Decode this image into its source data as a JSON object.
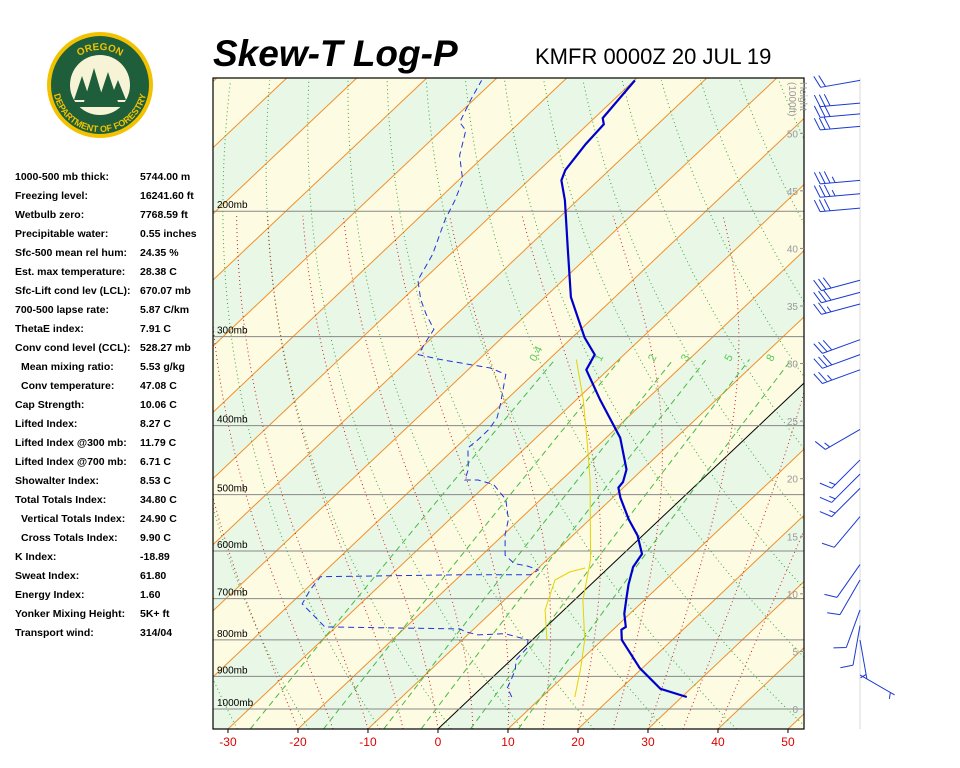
{
  "logo": {
    "top": "OREGON",
    "bottom": "DEPARTMENT OF FORESTRY"
  },
  "stats": [
    [
      "1000-500 mb thick:",
      "5744.00 m"
    ],
    [
      "Freezing level:",
      "16241.60 ft"
    ],
    [
      "Wetbulb zero:",
      "7768.59 ft"
    ],
    [
      "Precipitable water:",
      "0.55 inches"
    ],
    [
      "Sfc-500 mean rel hum:",
      "24.35 %"
    ],
    [
      "Est. max temperature:",
      "28.38 C"
    ],
    [
      "Sfc-Lift cond lev (LCL):",
      "670.07 mb"
    ],
    [
      "700-500 lapse rate:",
      "5.87 C/km"
    ],
    [
      "ThetaE index:",
      "7.91 C"
    ],
    [
      "Conv cond level (CCL):",
      "528.27 mb"
    ],
    [
      "Mean mixing ratio:",
      "5.53 g/kg"
    ],
    [
      "Conv temperature:",
      "47.08 C"
    ],
    [
      "Cap Strength:",
      "10.06 C"
    ],
    [
      "Lifted Index:",
      "8.27 C"
    ],
    [
      "Lifted Index @300 mb:",
      "11.79 C"
    ],
    [
      "Lifted Index @700 mb:",
      "6.71 C"
    ],
    [
      "Showalter Index:",
      "8.53 C"
    ],
    [
      "Total Totals Index:",
      "34.80 C"
    ],
    [
      "Vertical Totals Index:",
      "24.90 C"
    ],
    [
      "Cross Totals Index:",
      "9.90 C"
    ],
    [
      "K Index:",
      "-18.89"
    ],
    [
      "Sweat Index:",
      "61.80"
    ],
    [
      "Energy Index:",
      "1.60"
    ],
    [
      "Yonker Mixing Height:",
      "5K+ ft"
    ],
    [
      "Transport wind:",
      "314/04"
    ]
  ],
  "chart_data": {
    "type": "skewt",
    "title": "Skew-T Log-P",
    "subtitle": "KMFR 0000Z 20 JUL 19",
    "xlim": [
      -32.14,
      52.29
    ],
    "xticks": [
      -30,
      -20,
      -10,
      0,
      10,
      20,
      30,
      40,
      50
    ],
    "ylim": [
      1067,
      130
    ],
    "log_y": true,
    "yticks": [
      {
        "value": 1000,
        "label": "1000mb"
      },
      {
        "value": 900,
        "label": "900mb"
      },
      {
        "value": 800,
        "label": "800mb"
      },
      {
        "value": 700,
        "label": "700mb"
      },
      {
        "value": 600,
        "label": "600mb"
      },
      {
        "value": 500,
        "label": "500mb"
      },
      {
        "value": 400,
        "label": "400mb"
      },
      {
        "value": 300,
        "label": "300mb"
      },
      {
        "value": 200,
        "label": "200mb"
      }
    ],
    "y2label": [
      "Height",
      "(1000ft)"
    ],
    "y2lim": [
      -1.74,
      54.8
    ],
    "y2ticks": [
      0,
      5,
      10,
      15,
      20,
      25,
      30,
      35,
      40,
      45,
      50
    ],
    "mixing_ratio_labels": [
      0.4,
      1,
      2,
      3,
      5,
      8
    ],
    "series": [
      {
        "color": "#0000cc",
        "dashed": false,
        "pressure": [
          962,
          937,
          876,
          826,
          800,
          774,
          767,
          735,
          698,
          669,
          632,
          606,
          571,
          542,
          505,
          489,
          480,
          461,
          416,
          368,
          334,
          318,
          301,
          264,
          226,
          193,
          181,
          175,
          161,
          151,
          148,
          131
        ],
        "temperature": [
          30.7,
          25.7,
          19.6,
          15.2,
          12.8,
          11.2,
          11.4,
          9.2,
          7.1,
          5.4,
          3.4,
          2.7,
          -0.7,
          -4.4,
          -8.9,
          -10.7,
          -10.9,
          -12.3,
          -18.0,
          -26.6,
          -33.1,
          -34.2,
          -38.2,
          -46.3,
          -54.0,
          -61.8,
          -65.3,
          -66.3,
          -67.3,
          -67.7,
          -68.8,
          -69.9
        ]
      },
      {
        "color": "#2233dd",
        "dashed": true,
        "pressure": [
          962,
          934,
          910,
          881,
          853,
          821,
          800,
          784,
          787,
          779,
          772,
          767,
          745,
          712,
          680,
          652,
          648,
          648,
          638,
          630,
          625,
          608,
          569,
          542,
          508,
          484,
          477,
          477,
          461,
          430,
          419,
          405,
          390,
          374,
          339,
          332,
          323,
          318,
          306,
          293,
          279,
          266,
          250,
          230,
          206,
          193,
          181,
          167,
          154,
          150,
          139,
          131
        ],
        "temperature": [
          5.7,
          3.7,
          3.0,
          2.1,
          0.7,
          0.5,
          -0.6,
          -4.8,
          -8.5,
          -10.8,
          -12.0,
          -31.6,
          -34.2,
          -38.3,
          -39.3,
          -39.8,
          -20.1,
          -10.1,
          -9.7,
          -11.8,
          -14.1,
          -16.7,
          -19.8,
          -21.6,
          -25.0,
          -29.0,
          -31.9,
          -33.8,
          -34.9,
          -38.2,
          -38.0,
          -38.0,
          -38.6,
          -40.1,
          -43.9,
          -47.1,
          -55.5,
          -59.4,
          -60.2,
          -61.0,
          -64.4,
          -67.4,
          -70.7,
          -72.5,
          -75.9,
          -77.5,
          -79.4,
          -83.6,
          -86.5,
          -88.6,
          -90.5,
          -91.8
        ]
      },
      {
        "color": "#e6d200",
        "dashed": false,
        "pressure": [
          962,
          881,
          800,
          703,
          617,
          542,
          477,
          419,
          368,
          323
        ],
        "temperature": [
          14.7,
          11.4,
          7.5,
          1.2,
          -3.8,
          -9.9,
          -15.9,
          -22.4,
          -29.0,
          -36.1
        ]
      },
      {
        "color": "#e6d200",
        "dashed": false,
        "pressure": [
          800,
          726,
          659,
          642,
          634
        ],
        "temperature": [
          2.1,
          -2.7,
          -5.8,
          -4.9,
          -3.3
        ]
      }
    ],
    "winds": {
      "pressure": [
        131,
        141,
        146,
        152,
        181,
        189,
        198,
        250,
        260,
        270,
        303,
        318,
        334,
        405,
        447,
        468,
        490,
        537,
        627,
        659,
        726,
        764,
        800,
        896
      ],
      "direction": [
        260,
        265,
        265,
        265,
        265,
        265,
        265,
        255,
        255,
        255,
        250,
        250,
        250,
        240,
        225,
        225,
        225,
        220,
        215,
        210,
        200,
        190,
        170,
        120
      ],
      "speed": [
        20,
        30,
        30,
        30,
        35,
        35,
        30,
        30,
        30,
        25,
        30,
        30,
        25,
        15,
        15,
        15,
        15,
        10,
        10,
        10,
        10,
        10,
        5,
        5
      ]
    }
  }
}
